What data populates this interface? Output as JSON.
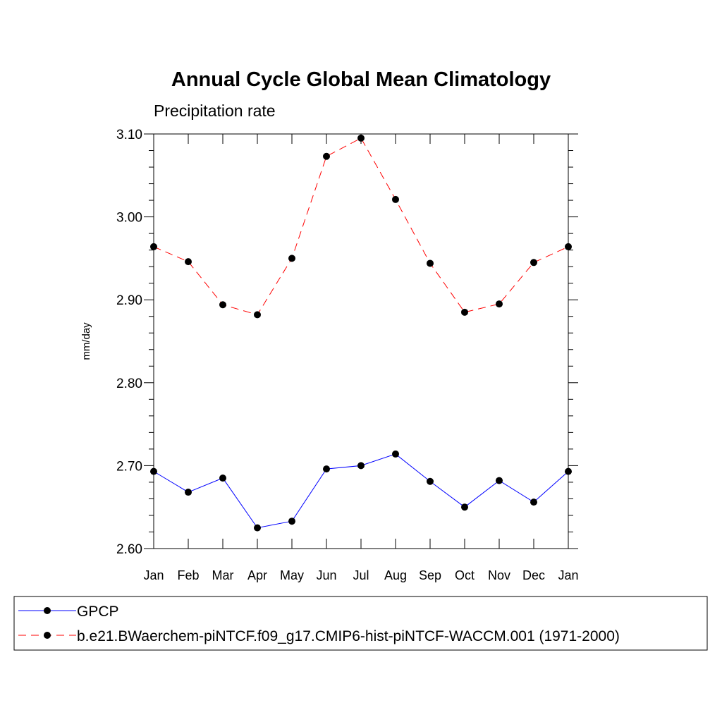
{
  "chart_data": {
    "type": "line",
    "title": "Annual Cycle Global Mean Climatology",
    "subtitle": "Precipitation rate",
    "xlabel": "",
    "ylabel": "mm/day",
    "categories": [
      "Jan",
      "Feb",
      "Mar",
      "Apr",
      "May",
      "Jun",
      "Jul",
      "Aug",
      "Sep",
      "Oct",
      "Nov",
      "Dec",
      "Jan"
    ],
    "ylim": [
      2.6,
      3.1
    ],
    "yticks": [
      2.6,
      2.7,
      2.8,
      2.9,
      3.0,
      3.1
    ],
    "ytick_labels": [
      "2.60",
      "2.70",
      "2.80",
      "2.90",
      "3.00",
      "3.10"
    ],
    "series": [
      {
        "name": "GPCP",
        "color": "#0000ff",
        "dash": "solid",
        "marker": "filled-circle",
        "values": [
          2.693,
          2.668,
          2.685,
          2.625,
          2.633,
          2.696,
          2.7,
          2.714,
          2.681,
          2.65,
          2.682,
          2.656,
          2.693
        ]
      },
      {
        "name": "b.e21.BWaerchem-piNTCF.f09_g17.CMIP6-hist-piNTCF-WACCM.001 (1971-2000)",
        "color": "#ff0000",
        "dash": "dashed",
        "marker": "filled-circle",
        "values": [
          2.964,
          2.946,
          2.894,
          2.882,
          2.95,
          3.073,
          3.095,
          3.021,
          2.944,
          2.885,
          2.895,
          2.945,
          2.964
        ]
      }
    ],
    "legend_position": "bottom"
  }
}
